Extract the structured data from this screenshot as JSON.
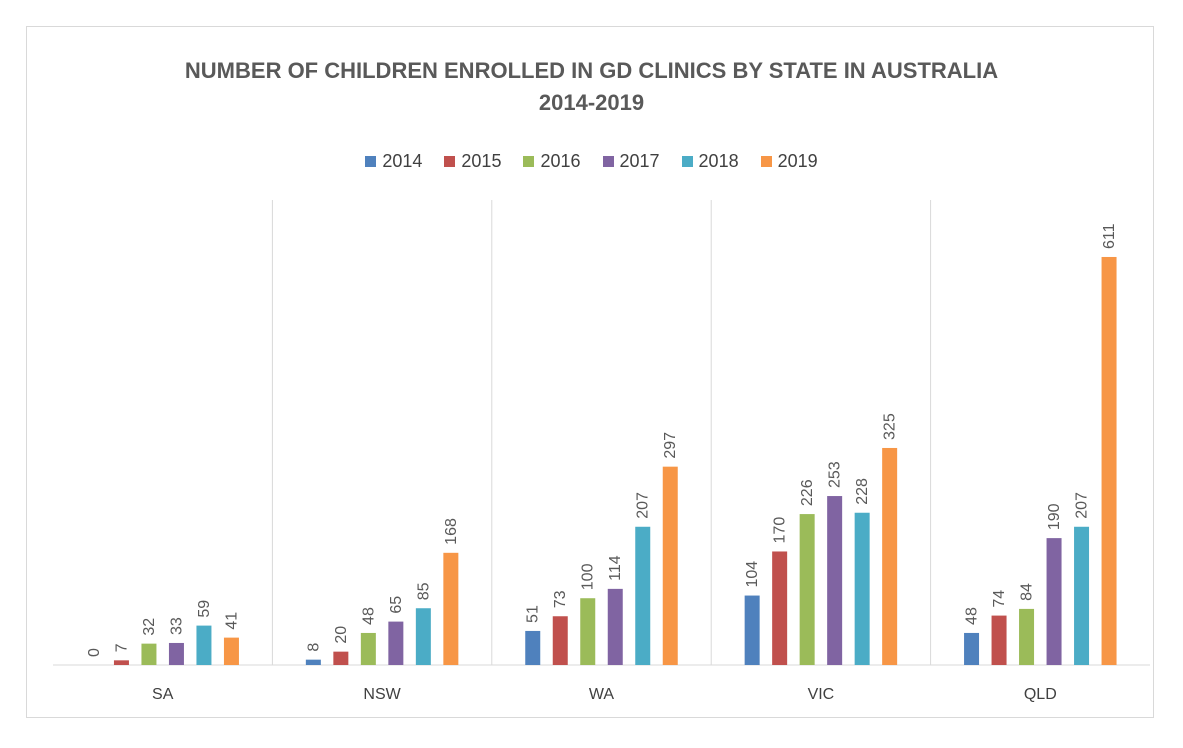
{
  "chart_data": {
    "type": "bar",
    "title_line1": "NUMBER OF CHILDREN ENROLLED IN GD CLINICS BY STATE IN AUSTRALIA",
    "title_line2": "2014-2019",
    "categories": [
      "SA",
      "NSW",
      "WA",
      "VIC",
      "QLD"
    ],
    "series": [
      {
        "name": "2014",
        "color": "#4f81bd",
        "values": [
          0,
          8,
          51,
          104,
          48
        ]
      },
      {
        "name": "2015",
        "color": "#c0504d",
        "values": [
          7,
          20,
          73,
          170,
          74
        ]
      },
      {
        "name": "2016",
        "color": "#9bbb59",
        "values": [
          32,
          48,
          100,
          226,
          84
        ]
      },
      {
        "name": "2017",
        "color": "#8064a2",
        "values": [
          33,
          65,
          114,
          253,
          190
        ]
      },
      {
        "name": "2018",
        "color": "#4bacc6",
        "values": [
          59,
          85,
          207,
          228,
          207
        ]
      },
      {
        "name": "2019",
        "color": "#f79646",
        "values": [
          41,
          168,
          297,
          325,
          611
        ]
      }
    ],
    "ylim": [
      0,
      700
    ],
    "legend_position": "top",
    "grid": false,
    "data_labels": true
  }
}
